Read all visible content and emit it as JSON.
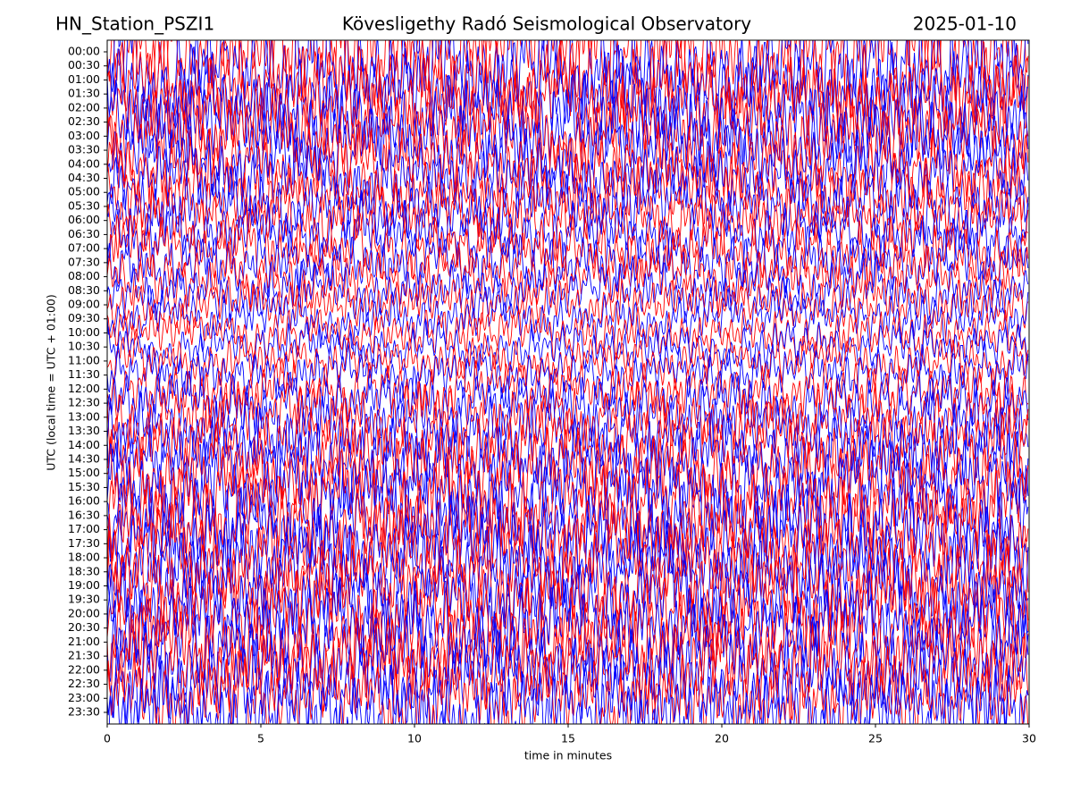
{
  "chart_data": {
    "type": "helicorder",
    "title": "Kövesligethy Radó Seismological Observatory",
    "title_left": "HN_Station_PSZI1",
    "title_right": "2025-01-10",
    "x_label": "time in minutes",
    "y_label": "UTC (local time = UTC + 01:00)",
    "categories": [
      "00:00",
      "00:30",
      "01:00",
      "01:30",
      "02:00",
      "02:30",
      "03:00",
      "03:30",
      "04:00",
      "04:30",
      "05:00",
      "05:30",
      "06:00",
      "06:30",
      "07:00",
      "07:30",
      "08:00",
      "08:30",
      "09:00",
      "09:30",
      "10:00",
      "10:30",
      "11:00",
      "11:30",
      "12:00",
      "12:30",
      "13:00",
      "13:30",
      "14:00",
      "14:30",
      "15:00",
      "15:30",
      "16:00",
      "16:30",
      "17:00",
      "17:30",
      "18:00",
      "18:30",
      "19:00",
      "19:30",
      "20:00",
      "20:30",
      "21:00",
      "21:30",
      "22:00",
      "22:30",
      "23:00",
      "23:30"
    ],
    "xlim": [
      0,
      30
    ],
    "xticks": [
      0,
      5,
      10,
      15,
      20,
      25,
      30
    ],
    "trace_colors": [
      "#ff0000",
      "#0000ff"
    ]
  }
}
